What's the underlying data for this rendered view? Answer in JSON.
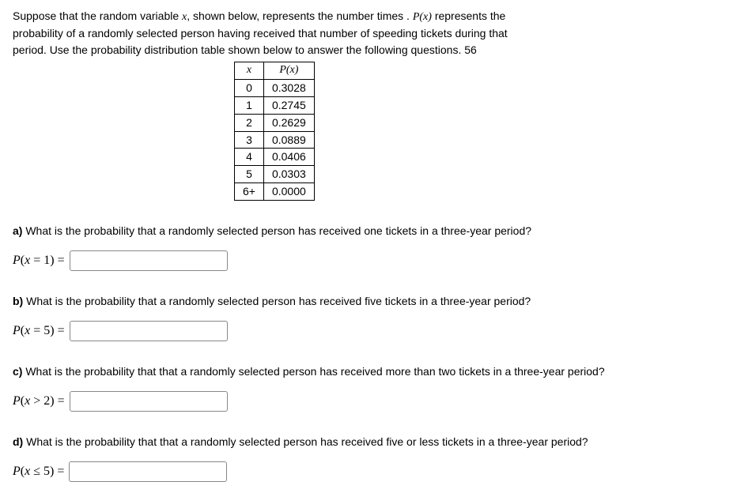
{
  "intro": {
    "line1_pre": "Suppose that the random variable ",
    "var": "x",
    "line1_mid": ", shown below, represents the number times . ",
    "px": "P(x)",
    "line1_post": " represents the",
    "line2": "probability of a randomly selected person having received that number of speeding tickets during that",
    "line3": "period. Use the probability distribution table shown below to answer the following questions. 56"
  },
  "table": {
    "head_x": "x",
    "head_px": "P(x)",
    "rows": [
      {
        "x": "0",
        "p": "0.3028"
      },
      {
        "x": "1",
        "p": "0.2745"
      },
      {
        "x": "2",
        "p": "0.2629"
      },
      {
        "x": "3",
        "p": "0.0889"
      },
      {
        "x": "4",
        "p": "0.0406"
      },
      {
        "x": "5",
        "p": "0.0303"
      },
      {
        "x": "6+",
        "p": "0.0000"
      }
    ]
  },
  "questions": {
    "a": {
      "label": "a)",
      "text": " What is the probability that a randomly selected person has received one tickets in a three-year period?",
      "expr": "P(x = 1) ="
    },
    "b": {
      "label": "b)",
      "text": " What is the probability that a randomly selected person has received five tickets in a three-year period?",
      "expr": "P(x = 5) ="
    },
    "c": {
      "label": "c)",
      "text": " What is the probability that that a randomly selected person has received more than two tickets in a three-year period?",
      "expr": "P(x > 2) ="
    },
    "d": {
      "label": "d)",
      "text": " What is the probability that that a randomly selected person has received five or less tickets in a three-year period?",
      "expr": "P(x ≤ 5) ="
    }
  }
}
